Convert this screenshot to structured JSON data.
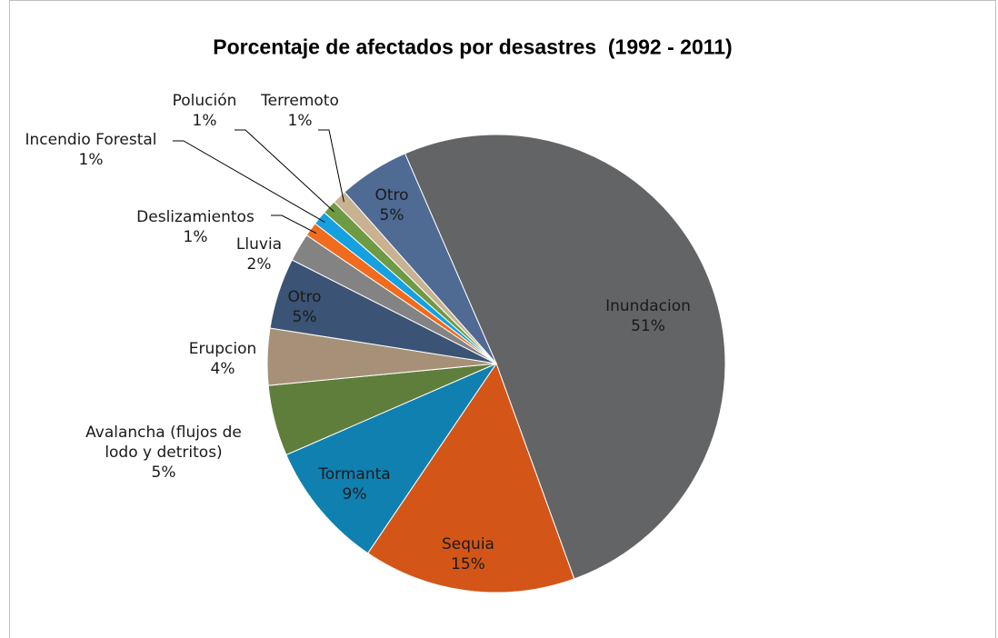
{
  "chart_data": {
    "type": "pie",
    "title": "Porcentaje de afectados por desastres  (1992 - 2011)",
    "categories": [
      "Inundacion",
      "Sequia",
      "Tormanta",
      "Avalancha (flujos de lodo y detritos)",
      "Erupcion",
      "Otro",
      "Lluvia",
      "Deslizamientos",
      "Incendio Forestal",
      "Polución",
      "Terremoto",
      "Otro"
    ],
    "values": [
      51,
      15,
      9,
      5,
      4,
      5,
      2,
      1,
      1,
      1,
      1,
      5
    ],
    "value_labels": [
      "51%",
      "15%",
      "9%",
      "5%",
      "4%",
      "5%",
      "2%",
      "1%",
      "1%",
      "1%",
      "1%",
      "5%"
    ],
    "colors": [
      "#636466",
      "#d35618",
      "#0f80b0",
      "#5f7e3b",
      "#a69178",
      "#3b5374",
      "#838383",
      "#f06b1e",
      "#15a1df",
      "#6f9a44",
      "#c8b291",
      "#4f6a93"
    ]
  }
}
